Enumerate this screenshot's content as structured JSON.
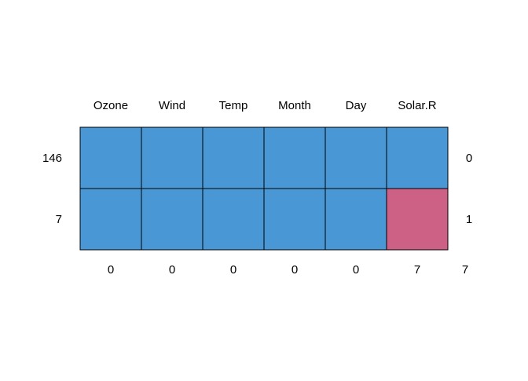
{
  "chart_data": {
    "type": "heatmap",
    "columns": [
      "Ozone",
      "Wind",
      "Temp",
      "Month",
      "Day",
      "Solar.R"
    ],
    "rows": [
      {
        "count": "146",
        "missing_vars": "0",
        "cells": [
          false,
          false,
          false,
          false,
          false,
          false
        ]
      },
      {
        "count": "7",
        "missing_vars": "1",
        "cells": [
          false,
          false,
          false,
          false,
          false,
          true
        ]
      }
    ],
    "column_missing_totals": [
      "0",
      "0",
      "0",
      "0",
      "0",
      "7"
    ],
    "grand_total_missing": "7",
    "colors": {
      "observed": "#4a97d6",
      "missing": "#cc6085",
      "border": "#000000"
    }
  }
}
